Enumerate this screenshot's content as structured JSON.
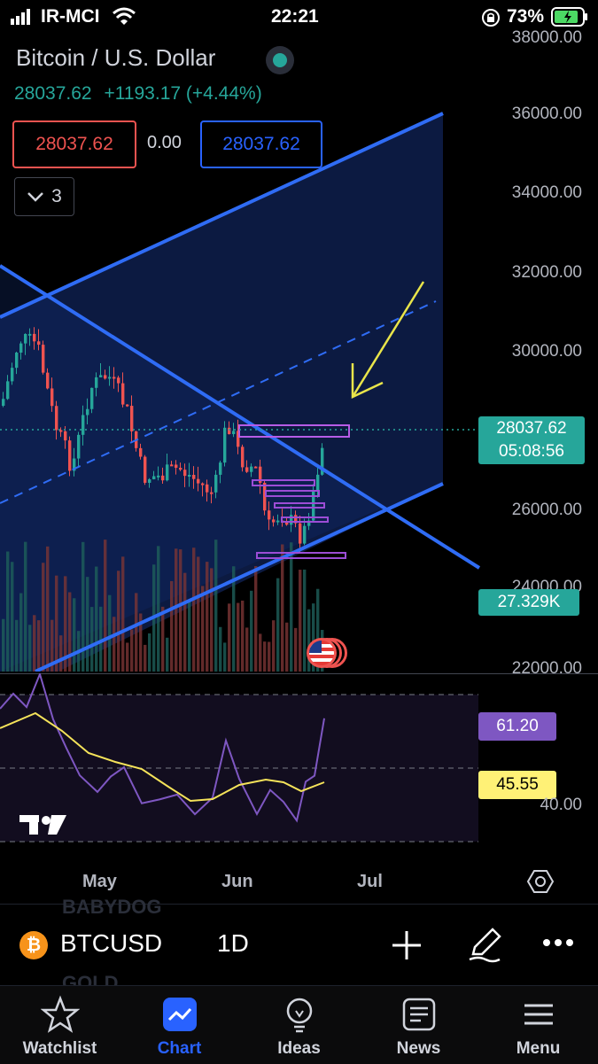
{
  "status_bar": {
    "carrier": "IR-MCI",
    "time": "22:21",
    "battery": "73%"
  },
  "symbol": {
    "title": "Bitcoin / U.S. Dollar",
    "price": "28037.62",
    "change": "+1193.17 (+4.44%)"
  },
  "order_panel": {
    "sell": "28037.62",
    "spread": "0.00",
    "buy": "28037.62",
    "indicators_count": "3"
  },
  "price_axis": {
    "labels": [
      "38000.00",
      "36000.00",
      "34000.00",
      "32000.00",
      "30000.00",
      "26000.00",
      "24000.00",
      "22000.00"
    ],
    "current_price": "28037.62",
    "countdown": "05:08:56",
    "volume": "27.329K"
  },
  "rsi": {
    "value": "61.20",
    "ma": "45.55",
    "level": "40.00"
  },
  "time_axis": {
    "labels": [
      "May",
      "Jun",
      "Jul"
    ]
  },
  "colors": {
    "up": "#26a69a",
    "down": "#ef5350",
    "accent": "#2962ff"
  },
  "toolbar": {
    "ticker": "BTCUSD",
    "interval": "1D",
    "ghost_top": "BABYDOG",
    "ghost_bottom": "GOLD"
  },
  "nav": {
    "items": [
      {
        "label": "Watchlist",
        "icon": "star-icon"
      },
      {
        "label": "Chart",
        "icon": "chart-icon"
      },
      {
        "label": "Ideas",
        "icon": "bulb-icon"
      },
      {
        "label": "News",
        "icon": "news-icon"
      },
      {
        "label": "Menu",
        "icon": "hamburger-icon"
      }
    ]
  }
}
